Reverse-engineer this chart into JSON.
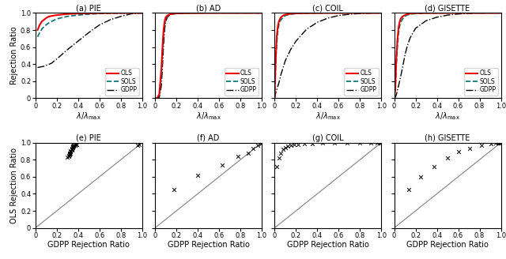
{
  "titles_top": [
    "(a) PIE",
    "(b) AD",
    "(c) COIL",
    "(d) GISETTE"
  ],
  "titles_bot": [
    "(e) PIE",
    "(f) AD",
    "(g) COIL",
    "(h) GISETTE"
  ],
  "ylabel_top": "Rejection Ratio",
  "xlabel_bot": "GDPP Rejection Ratio",
  "ylabel_bot": "OLS Rejection Ratio",
  "ols_color": "#ee0000",
  "sols_color": "#007070",
  "gdpp_color": "#000000",
  "pie_ols": {
    "x": [
      0.02,
      0.04,
      0.06,
      0.08,
      0.1,
      0.12,
      0.15,
      0.2,
      0.3,
      0.4,
      0.5,
      0.6,
      0.7,
      0.8,
      0.9,
      1.0
    ],
    "y": [
      0.8,
      0.86,
      0.9,
      0.92,
      0.94,
      0.955,
      0.965,
      0.975,
      0.988,
      0.993,
      0.996,
      0.998,
      0.999,
      1.0,
      1.0,
      1.0
    ]
  },
  "pie_sols": {
    "x": [
      0.02,
      0.04,
      0.06,
      0.08,
      0.1,
      0.12,
      0.15,
      0.2,
      0.3,
      0.4,
      0.5,
      0.6,
      0.7,
      0.8,
      0.9,
      1.0
    ],
    "y": [
      0.72,
      0.77,
      0.81,
      0.84,
      0.86,
      0.88,
      0.9,
      0.93,
      0.96,
      0.975,
      0.985,
      0.992,
      0.996,
      0.998,
      1.0,
      1.0
    ]
  },
  "pie_gdpp": {
    "x": [
      0.02,
      0.04,
      0.06,
      0.08,
      0.1,
      0.15,
      0.2,
      0.3,
      0.4,
      0.5,
      0.6,
      0.7,
      0.8,
      0.9,
      1.0
    ],
    "y": [
      0.36,
      0.365,
      0.37,
      0.375,
      0.385,
      0.41,
      0.46,
      0.57,
      0.67,
      0.77,
      0.86,
      0.92,
      0.96,
      0.99,
      1.0
    ]
  },
  "ad_ols": {
    "x": [
      0.0,
      0.02,
      0.04,
      0.06,
      0.07,
      0.08,
      0.09,
      0.1,
      0.12,
      0.15,
      0.2,
      0.3,
      0.5,
      1.0
    ],
    "y": [
      0.0,
      0.0,
      0.05,
      0.35,
      0.6,
      0.8,
      0.9,
      0.95,
      0.975,
      0.988,
      0.995,
      0.998,
      1.0,
      1.0
    ]
  },
  "ad_sols": {
    "x": [
      0.0,
      0.02,
      0.04,
      0.06,
      0.07,
      0.08,
      0.09,
      0.1,
      0.12,
      0.15,
      0.2,
      0.3,
      0.5,
      1.0
    ],
    "y": [
      0.0,
      0.0,
      0.03,
      0.28,
      0.52,
      0.75,
      0.87,
      0.93,
      0.97,
      0.985,
      0.993,
      0.997,
      1.0,
      1.0
    ]
  },
  "ad_gdpp": {
    "x": [
      0.0,
      0.02,
      0.04,
      0.06,
      0.07,
      0.08,
      0.09,
      0.1,
      0.12,
      0.15,
      0.2,
      0.25,
      0.3,
      0.5,
      1.0
    ],
    "y": [
      0.0,
      0.0,
      0.01,
      0.15,
      0.38,
      0.62,
      0.8,
      0.9,
      0.96,
      0.98,
      0.995,
      0.998,
      1.0,
      1.0,
      1.0
    ]
  },
  "coil_ols": {
    "x": [
      0.0,
      0.01,
      0.02,
      0.03,
      0.04,
      0.05,
      0.06,
      0.08,
      0.1,
      0.15,
      0.2,
      0.3,
      0.5,
      1.0
    ],
    "y": [
      0.0,
      0.45,
      0.72,
      0.84,
      0.9,
      0.93,
      0.95,
      0.97,
      0.98,
      0.99,
      0.995,
      0.998,
      1.0,
      1.0
    ]
  },
  "coil_sols": {
    "x": [
      0.0,
      0.01,
      0.02,
      0.03,
      0.04,
      0.05,
      0.06,
      0.08,
      0.1,
      0.15,
      0.2,
      0.3,
      0.5,
      1.0
    ],
    "y": [
      0.0,
      0.38,
      0.65,
      0.78,
      0.86,
      0.9,
      0.92,
      0.95,
      0.97,
      0.985,
      0.992,
      0.997,
      1.0,
      1.0
    ]
  },
  "coil_gdpp": {
    "x": [
      0.0,
      0.01,
      0.02,
      0.04,
      0.06,
      0.08,
      0.1,
      0.15,
      0.2,
      0.3,
      0.4,
      0.5,
      0.6,
      0.7,
      0.8,
      0.9,
      1.0
    ],
    "y": [
      0.0,
      0.06,
      0.1,
      0.18,
      0.28,
      0.36,
      0.44,
      0.57,
      0.67,
      0.81,
      0.89,
      0.94,
      0.97,
      0.985,
      0.993,
      0.998,
      1.0
    ]
  },
  "gisette_ols": {
    "x": [
      0.0,
      0.01,
      0.02,
      0.03,
      0.04,
      0.05,
      0.06,
      0.08,
      0.1,
      0.12,
      0.15,
      0.2,
      0.3,
      0.5,
      1.0
    ],
    "y": [
      0.0,
      0.1,
      0.45,
      0.68,
      0.82,
      0.89,
      0.93,
      0.96,
      0.975,
      0.985,
      0.992,
      0.997,
      0.999,
      1.0,
      1.0
    ]
  },
  "gisette_sols": {
    "x": [
      0.0,
      0.01,
      0.02,
      0.03,
      0.04,
      0.05,
      0.06,
      0.08,
      0.1,
      0.12,
      0.15,
      0.2,
      0.3,
      0.5,
      1.0
    ],
    "y": [
      0.0,
      0.08,
      0.38,
      0.6,
      0.75,
      0.84,
      0.89,
      0.93,
      0.96,
      0.975,
      0.985,
      0.993,
      0.998,
      1.0,
      1.0
    ]
  },
  "gisette_gdpp": {
    "x": [
      0.0,
      0.01,
      0.02,
      0.04,
      0.06,
      0.08,
      0.1,
      0.12,
      0.15,
      0.2,
      0.3,
      0.4,
      0.5,
      0.6,
      0.7,
      0.8,
      0.9,
      1.0
    ],
    "y": [
      0.0,
      0.01,
      0.04,
      0.14,
      0.25,
      0.37,
      0.5,
      0.6,
      0.71,
      0.82,
      0.91,
      0.95,
      0.975,
      0.988,
      0.995,
      0.998,
      1.0,
      1.0
    ]
  },
  "scatter_pie": {
    "gdpp": [
      0.3,
      0.31,
      0.31,
      0.32,
      0.32,
      0.32,
      0.33,
      0.33,
      0.33,
      0.34,
      0.34,
      0.34,
      0.35,
      0.35,
      0.35,
      0.36,
      0.36,
      0.37,
      0.38,
      0.39,
      0.96,
      0.97
    ],
    "ols": [
      0.83,
      0.84,
      0.85,
      0.86,
      0.87,
      0.88,
      0.88,
      0.89,
      0.9,
      0.91,
      0.92,
      0.93,
      0.94,
      0.95,
      0.96,
      0.96,
      0.97,
      0.97,
      0.98,
      0.98,
      0.97,
      0.98
    ]
  },
  "scatter_ad": {
    "gdpp": [
      0.18,
      0.4,
      0.63,
      0.78,
      0.87,
      0.92,
      0.96,
      0.99,
      1.0
    ],
    "ols": [
      0.45,
      0.62,
      0.74,
      0.84,
      0.88,
      0.93,
      0.97,
      0.99,
      1.0
    ]
  },
  "scatter_coil": {
    "gdpp": [
      0.02,
      0.04,
      0.06,
      0.08,
      0.1,
      0.12,
      0.15,
      0.18,
      0.22,
      0.28,
      0.35,
      0.45,
      0.56,
      0.68,
      0.8,
      0.9,
      0.96,
      0.99,
      1.0
    ],
    "ols": [
      0.72,
      0.82,
      0.88,
      0.92,
      0.94,
      0.96,
      0.97,
      0.975,
      0.98,
      0.985,
      0.99,
      0.993,
      0.996,
      0.998,
      1.0,
      1.0,
      1.0,
      1.0,
      1.0
    ]
  },
  "scatter_gisette": {
    "gdpp": [
      0.14,
      0.25,
      0.37,
      0.5,
      0.6,
      0.71,
      0.82,
      0.91,
      0.95,
      0.975,
      0.988,
      0.995,
      1.0
    ],
    "ols": [
      0.45,
      0.6,
      0.72,
      0.82,
      0.89,
      0.93,
      0.97,
      0.99,
      1.0,
      1.0,
      1.0,
      1.0,
      1.0
    ]
  }
}
